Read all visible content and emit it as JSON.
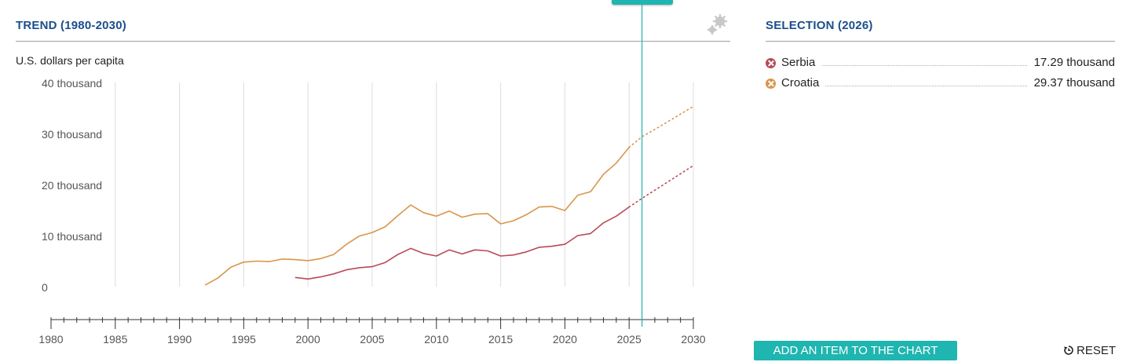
{
  "header": {
    "trend_title": "TREND (1980-2030)",
    "selection_title": "SELECTION (2026)"
  },
  "chart_data": {
    "type": "line",
    "title": "TREND (1980-2030)",
    "ylabel": "U.S. dollars per capita",
    "xlabel": "",
    "xlim": [
      1980,
      2030
    ],
    "ylim": [
      0,
      40000
    ],
    "x_ticks": [
      "1980",
      "1985",
      "1990",
      "1995",
      "2000",
      "2005",
      "2010",
      "2015",
      "2020",
      "2025",
      "2030"
    ],
    "y_ticks": [
      "0",
      "10 thousand",
      "20 thousand",
      "30 thousand",
      "40 thousand"
    ],
    "grid": "vertical",
    "cursor_year": 2026,
    "projection_start_year": 2025,
    "series": [
      {
        "name": "Serbia",
        "color": "#b94a55",
        "x": [
          1999,
          2000,
          2001,
          2002,
          2003,
          2004,
          2005,
          2006,
          2007,
          2008,
          2009,
          2010,
          2011,
          2012,
          2013,
          2014,
          2015,
          2016,
          2017,
          2018,
          2019,
          2020,
          2021,
          2022,
          2023,
          2024,
          2025,
          2026,
          2027,
          2028,
          2029,
          2030
        ],
        "values": [
          1800,
          1500,
          1900,
          2500,
          3300,
          3700,
          3900,
          4700,
          6300,
          7500,
          6500,
          6000,
          7200,
          6400,
          7200,
          7000,
          6000,
          6200,
          6800,
          7700,
          7900,
          8300,
          10000,
          10400,
          12500,
          13800,
          15600,
          17290,
          18900,
          20500,
          22100,
          23700
        ]
      },
      {
        "name": "Croatia",
        "color": "#d8964a",
        "x": [
          1992,
          1993,
          1994,
          1995,
          1996,
          1997,
          1998,
          1999,
          2000,
          2001,
          2002,
          2003,
          2004,
          2005,
          2006,
          2007,
          2008,
          2009,
          2010,
          2011,
          2012,
          2013,
          2014,
          2015,
          2016,
          2017,
          2018,
          2019,
          2020,
          2021,
          2022,
          2023,
          2024,
          2025,
          2026,
          2027,
          2028,
          2029,
          2030
        ],
        "values": [
          300,
          1700,
          3800,
          4800,
          5000,
          4900,
          5400,
          5300,
          5100,
          5500,
          6300,
          8300,
          9900,
          10600,
          11700,
          13900,
          16000,
          14500,
          13800,
          14800,
          13600,
          14200,
          14300,
          12300,
          12900,
          14100,
          15600,
          15700,
          14900,
          17900,
          18600,
          22000,
          24200,
          27300,
          29370,
          30800,
          32300,
          33800,
          35300
        ]
      }
    ]
  },
  "legend": [
    {
      "name": "Serbia",
      "value": "17.29 thousand",
      "color": "#b94a55"
    },
    {
      "name": "Croatia",
      "value": "29.37 thousand",
      "color": "#d8964a"
    }
  ],
  "controls": {
    "add_label": "ADD AN ITEM TO THE CHART",
    "reset_label": "RESET"
  },
  "icons": [
    "gear-icon",
    "reset-icon",
    "remove-series-icon"
  ],
  "colors": {
    "accent": "#1fb5b0",
    "title": "#1b4f8a"
  }
}
